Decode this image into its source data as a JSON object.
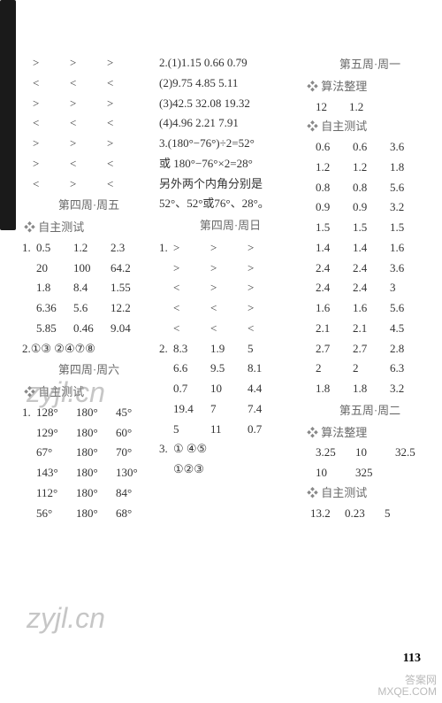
{
  "page_number": "113",
  "watermarks": [
    "zyjl.cn",
    "zyjl.cn"
  ],
  "logo_lines": [
    "答案网",
    "MXQE.COM"
  ],
  "col1": {
    "sym_rows": [
      [
        ">",
        ">",
        ">"
      ],
      [
        "<",
        "<",
        "<"
      ],
      [
        ">",
        ">",
        ">"
      ],
      [
        "<",
        "<",
        "<"
      ],
      [
        ">",
        ">",
        ">"
      ],
      [
        ">",
        "<",
        "<"
      ],
      [
        "<",
        ">",
        "<"
      ]
    ],
    "header1": "第四周·周五",
    "sub1": "自主测试",
    "q1_label": "1.",
    "q1_rows": [
      [
        "0.5",
        "1.2",
        "2.3"
      ],
      [
        "20",
        "100",
        "64.2"
      ],
      [
        "1.8",
        "8.4",
        "1.55"
      ],
      [
        "6.36",
        "5.6",
        "12.2"
      ],
      [
        "5.85",
        "0.46",
        "9.04"
      ]
    ],
    "q2_label": "2.",
    "q2_text": "①③  ②④⑦⑧",
    "header2": "第四周·周六",
    "sub2": "自主测试",
    "q1b_label": "1.",
    "deg_rows": [
      [
        "128°",
        "180°",
        "45°"
      ],
      [
        "129°",
        "180°",
        "60°"
      ],
      [
        "67°",
        "180°",
        "70°"
      ],
      [
        "143°",
        "180°",
        "130°"
      ],
      [
        "112°",
        "180°",
        "84°"
      ],
      [
        "56°",
        "180°",
        "68°"
      ]
    ]
  },
  "col2": {
    "q2_label": "2.",
    "q2_rows": [
      "(1)1.15 0.66 0.79",
      "(2)9.75 4.85  5.11",
      "(3)42.5 32.08 19.32",
      "(4)4.96 2.21  7.91"
    ],
    "q3_label": "3.",
    "q3_lines": [
      "(180°−76°)÷2=52°",
      "或 180°−76°×2=28°",
      "另外两个内角分别是",
      "52°、52°或76°、28°。"
    ],
    "header1": "第四周·周日",
    "sym_q1_label": "1.",
    "sym_rows": [
      [
        ">",
        ">",
        ">"
      ],
      [
        ">",
        ">",
        ">"
      ],
      [
        "<",
        ">",
        ">"
      ],
      [
        "<",
        "<",
        ">"
      ],
      [
        "<",
        "<",
        "<"
      ]
    ],
    "q2b_label": "2.",
    "num_rows": [
      [
        "8.3",
        "1.9",
        "5"
      ],
      [
        "6.6",
        "9.5",
        "8.1"
      ],
      [
        "0.7",
        "10",
        "4.4"
      ],
      [
        "19.4",
        "7",
        "7.4"
      ],
      [
        "5",
        "11",
        "0.7"
      ]
    ],
    "q3b_label": "3.",
    "q3b_rows": [
      "①   ④⑤",
      "①②③"
    ]
  },
  "col3": {
    "header1": "第五周·周一",
    "sub1": "算法整理",
    "alg1": [
      "12",
      "1.2"
    ],
    "sub2": "自主测试",
    "test_rows": [
      [
        "0.6",
        "0.6",
        "3.6"
      ],
      [
        "1.2",
        "1.2",
        "1.8"
      ],
      [
        "0.8",
        "0.8",
        "5.6"
      ],
      [
        "0.9",
        "0.9",
        "3.2"
      ],
      [
        "1.5",
        "1.5",
        "1.5"
      ],
      [
        "1.4",
        "1.4",
        "1.6"
      ],
      [
        "2.4",
        "2.4",
        "3.6"
      ],
      [
        "2.4",
        "2.4",
        "3"
      ],
      [
        "1.6",
        "1.6",
        "5.6"
      ],
      [
        "2.1",
        "2.1",
        "4.5"
      ],
      [
        "2.7",
        "2.7",
        "2.8"
      ],
      [
        "2",
        "2",
        "6.3"
      ],
      [
        "1.8",
        "1.8",
        "3.2"
      ]
    ],
    "header2": "第五周·周二",
    "sub3": "算法整理",
    "alg2_rows": [
      [
        "3.25",
        "10",
        "32.5"
      ],
      [
        "10",
        "325",
        ""
      ]
    ],
    "sub4": "自主测试",
    "test2_row": [
      "13.2",
      "0.23",
      "5"
    ]
  }
}
